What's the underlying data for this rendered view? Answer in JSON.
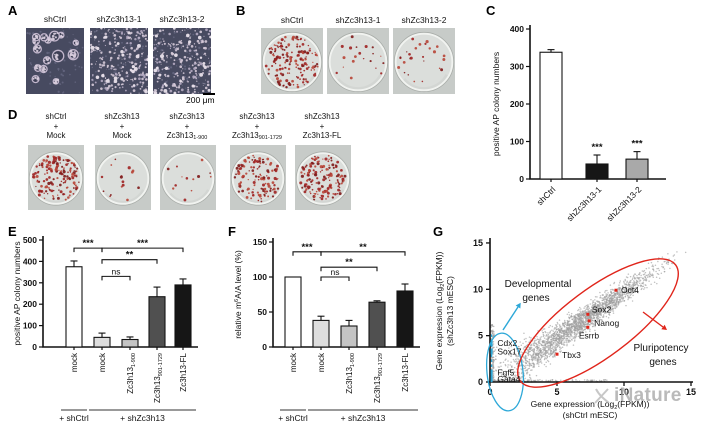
{
  "letters": {
    "A": "A",
    "B": "B",
    "C": "C",
    "D": "D",
    "E": "E",
    "F": "F",
    "G": "G"
  },
  "panelA": {
    "images": [
      {
        "label": "shCtrl",
        "style": "colonies",
        "seed": 11
      },
      {
        "label": "shZc3h13-1",
        "style": "scattered",
        "seed": 22
      },
      {
        "label": "shZc3h13-2",
        "style": "scattered",
        "seed": 33
      }
    ],
    "scale_bar": {
      "value": "200",
      "unit": "μm"
    }
  },
  "panelB": {
    "dishes": [
      {
        "label": "shCtrl",
        "colonies": 175,
        "seed": 1
      },
      {
        "label": "shZc3h13-1",
        "colonies": 20,
        "seed": 2
      },
      {
        "label": "shZc3h13-2",
        "colonies": 26,
        "seed": 3
      }
    ]
  },
  "panelD": {
    "dishes": [
      {
        "line1": "shCtrl",
        "line2": "+",
        "line3": "Mock",
        "sub": "",
        "colonies": 155,
        "seed": 4
      },
      {
        "line1": "shZc3h13",
        "line2": "+",
        "line3": "Mock",
        "sub": "",
        "colonies": 16,
        "seed": 5
      },
      {
        "line1": "shZc3h13",
        "line2": "+",
        "line3": "Zc3h13",
        "sub": "1-900",
        "colonies": 13,
        "seed": 6
      },
      {
        "line1": "shZc3h13",
        "line2": "+",
        "line3": "Zc3h13",
        "sub": "901-1729",
        "colonies": 125,
        "seed": 7
      },
      {
        "line1": "shZc3h13",
        "line2": "+",
        "line3": "Zc3h13-FL",
        "sub": "",
        "colonies": 155,
        "seed": 8
      }
    ]
  },
  "chart_data": [
    {
      "id": "C",
      "type": "bar",
      "categories": [
        "shCtrl",
        "shZc3h13-1",
        "shZc3h13-2"
      ],
      "values": [
        338,
        40,
        53
      ],
      "errors": [
        7,
        24,
        20
      ],
      "bar_colors": [
        "#ffffff",
        "#161616",
        "#a9a9a9"
      ],
      "ylabel": "positive AP colony numbers",
      "ylim": [
        0,
        400
      ],
      "yticks": [
        0,
        100,
        200,
        300,
        400
      ],
      "stars": [
        {
          "bar": 1,
          "label": "***"
        },
        {
          "bar": 2,
          "label": "***"
        }
      ]
    },
    {
      "id": "E",
      "type": "bar",
      "categories": [
        {
          "base": "mock",
          "sub": ""
        },
        {
          "base": "mock",
          "sub": ""
        },
        {
          "base": "Zc3h13",
          "sub": "1-900"
        },
        {
          "base": "Zc3h13",
          "sub": "901-1729"
        },
        {
          "base": "Zc3h13-FL",
          "sub": ""
        }
      ],
      "values": [
        375,
        45,
        35,
        235,
        290
      ],
      "errors": [
        27,
        20,
        12,
        45,
        28
      ],
      "bar_colors": [
        "#ffffff",
        "#dedede",
        "#c4c4c4",
        "#505050",
        "#161616"
      ],
      "ylabel": "positive AP colony numbers",
      "ylim": [
        0,
        500
      ],
      "yticks": [
        0,
        100,
        200,
        300,
        400,
        500
      ],
      "comparisons": [
        {
          "from": 0,
          "to": 1,
          "label": "***",
          "y": 462
        },
        {
          "from": 1,
          "to": 4,
          "label": "***",
          "y": 462
        },
        {
          "from": 1,
          "to": 3,
          "label": "**",
          "y": 408
        },
        {
          "from": 1,
          "to": 2,
          "label": "ns",
          "y": 330
        }
      ],
      "groups": [
        {
          "label": "+ shCtrl",
          "from": 0,
          "to": 0
        },
        {
          "label": "+ shZc3h13",
          "from": 1,
          "to": 4
        }
      ]
    },
    {
      "id": "F",
      "type": "bar",
      "categories": [
        {
          "base": "mock",
          "sub": ""
        },
        {
          "base": "mock",
          "sub": ""
        },
        {
          "base": "Zc3h13",
          "sub": "1-900"
        },
        {
          "base": "Zc3h13",
          "sub": "901-1729"
        },
        {
          "base": "Zc3h13-FL",
          "sub": ""
        }
      ],
      "values": [
        100,
        38,
        30,
        64,
        80
      ],
      "errors": [
        0,
        6,
        8,
        2,
        10
      ],
      "bar_colors": [
        "#ffffff",
        "#dedede",
        "#c4c4c4",
        "#505050",
        "#161616"
      ],
      "ylabel_parts": [
        {
          "t": "relative m"
        },
        {
          "t": "6",
          "sup": true
        },
        {
          "t": "A/A level (%)"
        }
      ],
      "ylim": [
        0,
        150
      ],
      "yticks": [
        0,
        50,
        100,
        150
      ],
      "comparisons": [
        {
          "from": 0,
          "to": 1,
          "label": "***",
          "y": 136
        },
        {
          "from": 1,
          "to": 4,
          "label": "**",
          "y": 136
        },
        {
          "from": 1,
          "to": 3,
          "label": "**",
          "y": 114
        },
        {
          "from": 1,
          "to": 2,
          "label": "ns",
          "y": 100
        }
      ],
      "groups": [
        {
          "label": "+ shCtrl",
          "from": 0,
          "to": 0
        },
        {
          "label": "+ shZc3h13",
          "from": 1,
          "to": 4
        }
      ]
    },
    {
      "id": "G",
      "type": "scatter",
      "xlabel_parts": [
        {
          "t": "Gene expression (Log"
        },
        {
          "t": "2",
          "sub": true
        },
        {
          "t": "(FPKM))"
        }
      ],
      "xlabel_line2": "(shCtrl mESC)",
      "ylabel_parts": [
        {
          "t": "Gene expression (Log"
        },
        {
          "t": "2",
          "sub": true
        },
        {
          "t": "(FPKM))"
        }
      ],
      "ylabel_line2": "(shZc3h13 mESC)",
      "xlim": [
        0,
        15
      ],
      "ylim": [
        0,
        15
      ],
      "xticks": [
        0,
        5,
        10,
        15
      ],
      "yticks": [
        0,
        5,
        10,
        15
      ],
      "point_color": "#9f9f9f",
      "highlight_color": "#e0251b",
      "dev_color": "#2da8d8",
      "pluripotency_genes": [
        {
          "name": "Oct4",
          "x": 9.4,
          "y": 9.9
        },
        {
          "name": "Sox2",
          "x": 7.3,
          "y": 7.3
        },
        {
          "name": "Nanog",
          "x": 7.4,
          "y": 6.6
        },
        {
          "name": "Esrrb",
          "x": 7.3,
          "y": 5.9
        },
        {
          "name": "Tbx3",
          "x": 5.0,
          "y": 3.0
        }
      ],
      "developmental_genes": [
        {
          "name": "Cdx2",
          "x": 0.15,
          "y": 4.2
        },
        {
          "name": "Sox17",
          "x": 0.15,
          "y": 3.3
        },
        {
          "name": "Fgf5",
          "x": 0.15,
          "y": 1.0
        },
        {
          "name": "Gata4",
          "x": 0.15,
          "y": 0.3
        }
      ],
      "annotations": [
        {
          "id": "developmental",
          "lines": [
            "Developmental",
            "genes"
          ],
          "color": "#2da8d8"
        },
        {
          "id": "pluripotency",
          "lines": [
            "Pluripotency",
            "genes"
          ],
          "color": "#e0251b"
        }
      ],
      "cloud": {
        "seed": 1234,
        "n_diagonal": 2400,
        "n_y_axis": 150,
        "n_x_axis": 120
      }
    }
  ],
  "watermark": {
    "text": "iNature"
  }
}
